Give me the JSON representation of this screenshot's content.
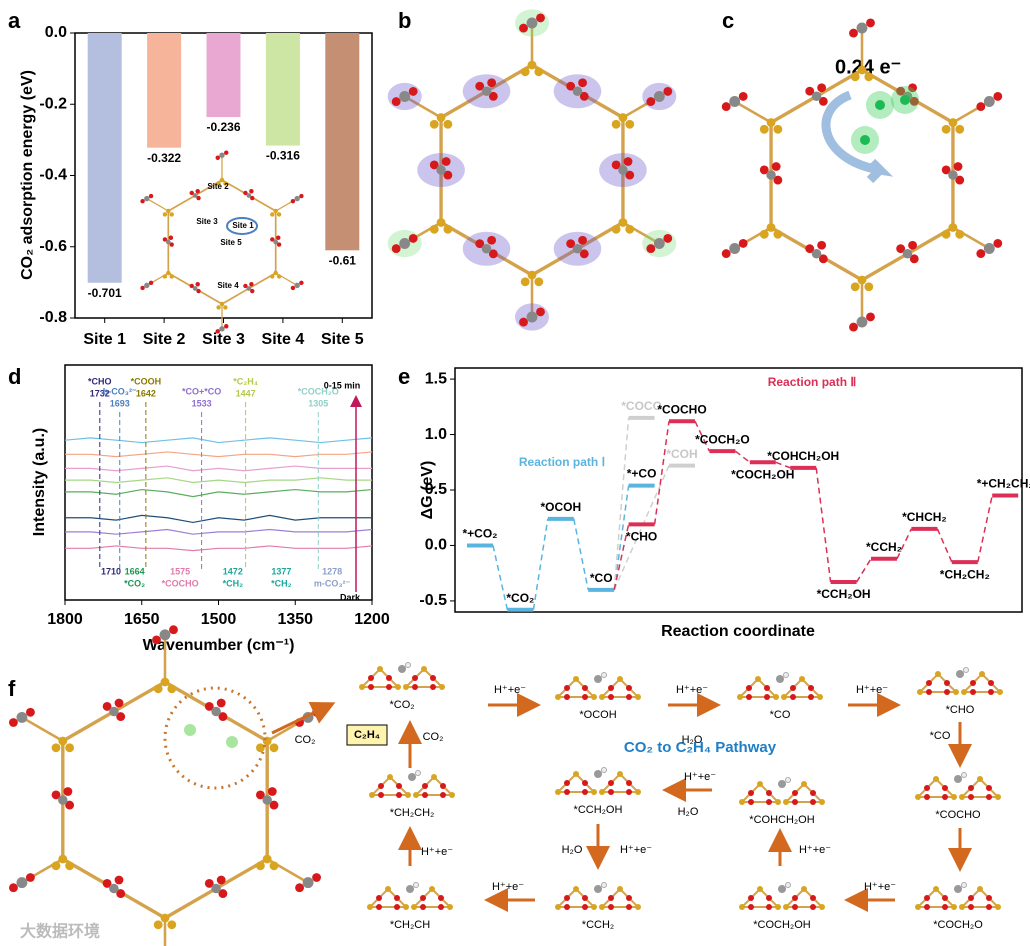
{
  "chart_data": [
    {
      "type": "bar",
      "panel_label": "a",
      "ylabel": "CO₂ adsorption energy (eV)",
      "categories": [
        "Site 1",
        "Site 2",
        "Site 3",
        "Site 4",
        "Site 5"
      ],
      "values": [
        -0.701,
        -0.322,
        -0.236,
        -0.316,
        -0.61
      ],
      "colors": [
        "#b4bedf",
        "#f6b59a",
        "#e8a8d2",
        "#cde6a4",
        "#c58f73"
      ],
      "ylim": [
        -0.8,
        0
      ],
      "yticks": [
        {
          "value": 0,
          "label": "0.0"
        },
        -0.2,
        -0.4,
        -0.6,
        -0.8
      ]
    },
    {
      "type": "line",
      "panel_label": "d",
      "xlabel": "Wavenumber (cm⁻¹)",
      "ylabel": "Intensity (a.u.)",
      "xlim": [
        1800,
        1200
      ],
      "xticks": [
        1800,
        1650,
        1500,
        1350,
        1200
      ],
      "ylim": [
        0,
        1
      ],
      "x": [
        1800,
        1750,
        1700,
        1650,
        1600,
        1550,
        1500,
        1450,
        1400,
        1350,
        1300,
        1250,
        1200
      ],
      "series": [
        {
          "color": "#6ec1e4",
          "values": [
            0.68,
            0.69,
            0.68,
            0.67,
            0.68,
            0.69,
            0.67,
            0.68,
            0.69,
            0.68,
            0.67,
            0.68,
            0.69
          ]
        },
        {
          "color": "#f4a582",
          "values": [
            0.62,
            0.62,
            0.61,
            0.62,
            0.63,
            0.62,
            0.61,
            0.62,
            0.62,
            0.61,
            0.62,
            0.62,
            0.63
          ]
        },
        {
          "color": "#e79fcf",
          "values": [
            0.56,
            0.56,
            0.55,
            0.56,
            0.57,
            0.55,
            0.56,
            0.55,
            0.56,
            0.57,
            0.56,
            0.56,
            0.56
          ]
        },
        {
          "color": "#a6d785",
          "values": [
            0.51,
            0.51,
            0.5,
            0.51,
            0.52,
            0.5,
            0.51,
            0.5,
            0.51,
            0.51,
            0.52,
            0.51,
            0.51
          ]
        },
        {
          "color": "#5aae61",
          "values": [
            0.46,
            0.46,
            0.45,
            0.47,
            0.46,
            0.44,
            0.46,
            0.45,
            0.46,
            0.47,
            0.46,
            0.46,
            0.47
          ]
        },
        {
          "color": "#1f4e79",
          "values": [
            0.35,
            0.35,
            0.34,
            0.36,
            0.35,
            0.33,
            0.35,
            0.34,
            0.36,
            0.34,
            0.35,
            0.35,
            0.35
          ]
        },
        {
          "color": "#9e7fd6",
          "values": [
            0.29,
            0.29,
            0.28,
            0.29,
            0.3,
            0.28,
            0.29,
            0.29,
            0.3,
            0.29,
            0.29,
            0.29,
            0.3
          ]
        },
        {
          "color": "#e07bab",
          "values": [
            0.22,
            0.22,
            0.23,
            0.22,
            0.22,
            0.21,
            0.22,
            0.22,
            0.23,
            0.22,
            0.22,
            0.22,
            0.23
          ]
        }
      ],
      "peaks_top": [
        {
          "x": 1732,
          "label": "*CHO",
          "color": "#2e2a7a"
        },
        {
          "x": 1693,
          "label": "b-CO₃²⁻",
          "color": "#4a7fc1"
        },
        {
          "x": 1642,
          "label": "*COOH",
          "color": "#8a7a00"
        },
        {
          "x": 1533,
          "label": "*CO+*CO",
          "color": "#8f6fd0"
        },
        {
          "x": 1447,
          "label": "*C₂H₄",
          "color": "#b5c94a"
        },
        {
          "x": 1305,
          "label": "*COCH₂O",
          "color": "#8fd0c8"
        }
      ],
      "peaks_bottom": [
        {
          "x": 1710,
          "color": "#2e2a7a"
        },
        {
          "x": 1664,
          "label": "*CO₂",
          "color": "#1a9850"
        },
        {
          "x": 1575,
          "label": "*COCHO",
          "color": "#e07bab"
        },
        {
          "x": 1472,
          "label": "*CH₂",
          "color": "#1aa89a"
        },
        {
          "x": 1377,
          "label": "*CH₂",
          "color": "#1aa89a"
        },
        {
          "x": 1278,
          "label": "m-CO₃²⁻",
          "color": "#8aa0c8"
        }
      ],
      "annotations": [
        "0-15 min",
        "Dark"
      ]
    },
    {
      "type": "step",
      "panel_label": "e",
      "xlabel": "Reaction coordinate",
      "ylabel": "ΔG (eV)",
      "ylim": [
        -0.6,
        1.6
      ],
      "yticks": [
        -0.5,
        {
          "value": 0,
          "label": "0.0"
        },
        0.5,
        {
          "value": 1,
          "label": "1.0"
        },
        1.5
      ],
      "series": [
        {
          "name": "Reaction path Ⅰ",
          "color": "#5ab4e0",
          "labels": [
            "*+CO₂",
            "*CO₂",
            "*OCOH",
            "*CO",
            "*+CO"
          ],
          "values": [
            0,
            -0.58,
            0.24,
            -0.4,
            0.54
          ]
        },
        {
          "color": "#cfcfcf",
          "labels": [
            "*COCO",
            "*COH"
          ],
          "values": [
            1.15,
            0.72
          ]
        },
        {
          "name": "Reaction path Ⅱ",
          "color": "#dc2f55",
          "labels": [
            "*CHO",
            "*COCHO",
            "*COCH₂O",
            "*COCH₂OH",
            "*COHCH₂OH",
            "*CCH₂OH",
            "*CCH₂",
            "*CHCH₂",
            "*CH₂CH₂",
            "*+CH₂CH₂"
          ],
          "values": [
            0.19,
            1.12,
            0.85,
            0.75,
            0.7,
            -0.33,
            -0.12,
            0.15,
            -0.15,
            0.45
          ]
        }
      ]
    }
  ],
  "panels": {
    "b": {
      "panel_label": "b"
    },
    "c": {
      "panel_label": "c",
      "annotation": "0.24 e⁻"
    },
    "f": {
      "panel_label": "f",
      "title": "CO₂ to C₂H₄ Pathway",
      "product": "C₂H₄",
      "intermediates": [
        "*CO₂",
        "*OCOH",
        "*CO",
        "*CHO",
        "*CH₂CH₂",
        "*CCH₂OH",
        "*COHCH₂OH",
        "*COCHO",
        "*CH₂CH",
        "*CCH₂",
        "*COCH₂OH",
        "*COCH₂O"
      ],
      "steps": [
        "H⁺+e⁻",
        "H⁺+e⁻",
        "H₂O",
        "H⁺+e⁻",
        "*CO",
        "CO₂",
        "CO₂",
        "H⁺+e⁻",
        "H₂O",
        "H₂O",
        "H⁺+e⁻",
        "H⁺+e⁻",
        "H⁺+e⁻",
        "H⁺+e⁻",
        "H⁺+e⁻"
      ]
    }
  },
  "watermark": "大数据环境"
}
